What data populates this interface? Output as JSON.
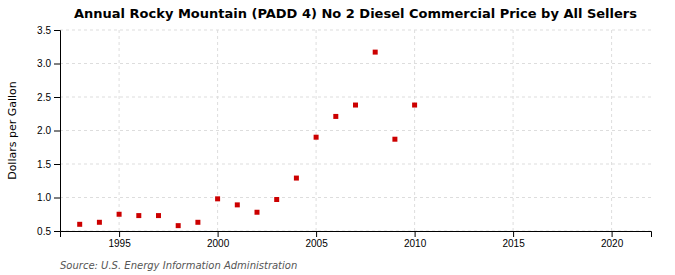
{
  "chart_data": {
    "type": "scatter",
    "title": "Annual Rocky Mountain (PADD 4) No 2 Diesel Commercial Price by All Sellers",
    "ylabel": "Dollars per Gallon",
    "annotations": [
      "Source: U.S. Energy Information Administration"
    ],
    "x": [
      1993,
      1994,
      1995,
      1996,
      1997,
      1998,
      1999,
      2000,
      2001,
      2002,
      2003,
      2004,
      2005,
      2006,
      2007,
      2008,
      2009,
      2010
    ],
    "values": [
      0.6,
      0.63,
      0.75,
      0.73,
      0.73,
      0.58,
      0.63,
      0.98,
      0.89,
      0.78,
      0.97,
      1.29,
      1.9,
      2.21,
      2.38,
      3.17,
      1.87,
      2.38
    ],
    "color": "#cc0000",
    "marker": "square",
    "xlim": [
      1992,
      2022
    ],
    "xticks": [
      1995,
      2000,
      2005,
      2010,
      2015,
      2020
    ],
    "ylim": [
      0.5,
      3.5
    ],
    "yticks": [
      0.5,
      {
        "value": 1.0,
        "label": "1.0"
      },
      1.5,
      {
        "value": 2.0,
        "label": "2.0"
      },
      2.5,
      {
        "value": 3.0,
        "label": "3.0"
      },
      3.5
    ],
    "grid": true
  }
}
